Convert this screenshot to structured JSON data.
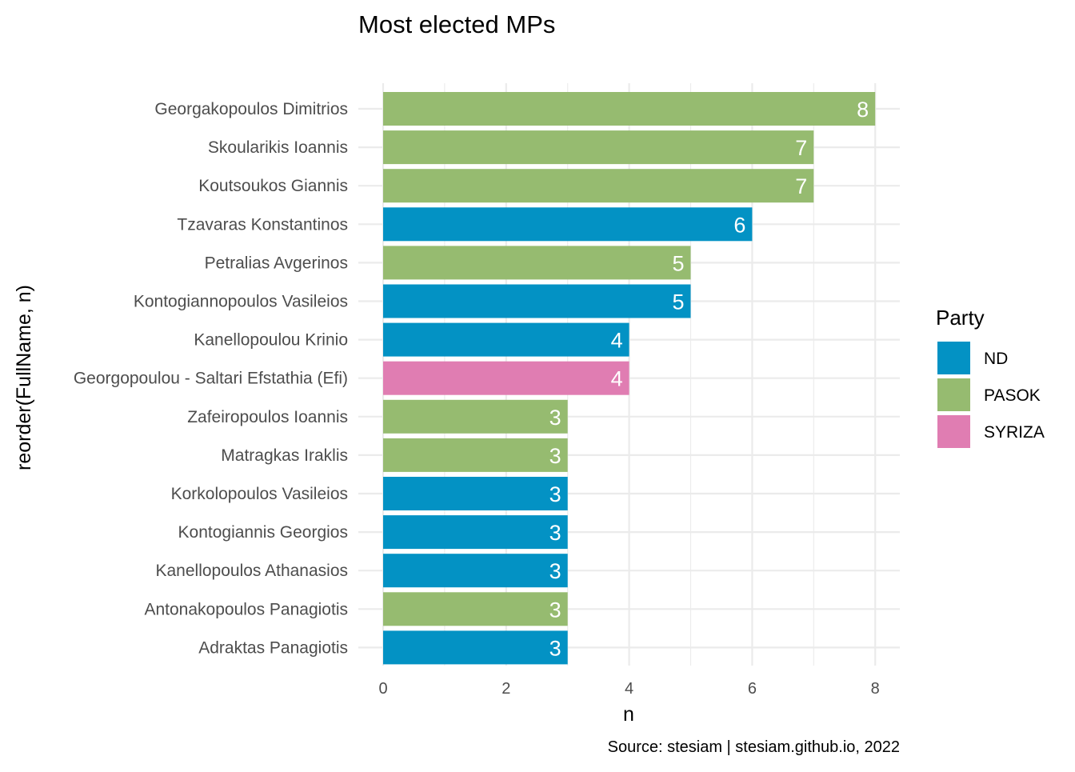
{
  "chart_data": {
    "type": "bar",
    "orientation": "horizontal",
    "title": "Most elected MPs",
    "xlabel": "n",
    "ylabel": "reorder(FullName, n)",
    "caption": "Source: stesiam | stesiam.github.io, 2022",
    "xlim": [
      0,
      8
    ],
    "xticks": [
      0,
      2,
      4,
      6,
      8
    ],
    "grid": true,
    "legend": {
      "title": "Party",
      "placement": "right",
      "entries": [
        {
          "name": "ND",
          "color": "#0392c4"
        },
        {
          "name": "PASOK",
          "color": "#96bb70"
        },
        {
          "name": "SYRIZA",
          "color": "#e07db2"
        }
      ]
    },
    "bars": [
      {
        "name": "Georgakopoulos Dimitrios",
        "value": 8,
        "party": "PASOK"
      },
      {
        "name": "Skoularikis Ioannis",
        "value": 7,
        "party": "PASOK"
      },
      {
        "name": "Koutsoukos Giannis",
        "value": 7,
        "party": "PASOK"
      },
      {
        "name": "Tzavaras Konstantinos",
        "value": 6,
        "party": "ND"
      },
      {
        "name": "Petralias Avgerinos",
        "value": 5,
        "party": "PASOK"
      },
      {
        "name": "Kontogiannopoulos Vasileios",
        "value": 5,
        "party": "ND"
      },
      {
        "name": "Kanellopoulou Krinio",
        "value": 4,
        "party": "ND"
      },
      {
        "name": "Georgopoulou - Saltari Efstathia (Efi)",
        "value": 4,
        "party": "SYRIZA"
      },
      {
        "name": "Zafeiropoulos Ioannis",
        "value": 3,
        "party": "PASOK"
      },
      {
        "name": "Matragkas Iraklis",
        "value": 3,
        "party": "PASOK"
      },
      {
        "name": "Korkolopoulos Vasileios",
        "value": 3,
        "party": "ND"
      },
      {
        "name": "Kontogiannis Georgios",
        "value": 3,
        "party": "ND"
      },
      {
        "name": "Kanellopoulos Athanasios",
        "value": 3,
        "party": "ND"
      },
      {
        "name": "Antonakopoulos Panagiotis",
        "value": 3,
        "party": "PASOK"
      },
      {
        "name": "Adraktas Panagiotis",
        "value": 3,
        "party": "ND"
      }
    ]
  }
}
